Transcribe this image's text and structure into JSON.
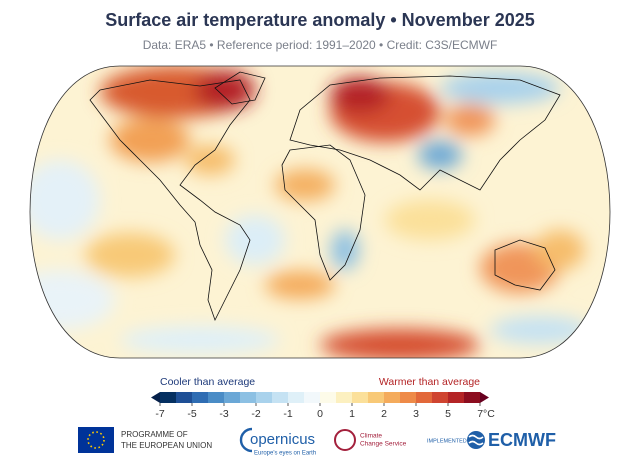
{
  "title": "Surface air temperature anomaly • November 2025",
  "subtitle": "Data: ERA5 • Reference period: 1991–2020 • Credit: C3S/ECMWF",
  "legend": {
    "cooler_label": "Cooler than average",
    "warmer_label": "Warmer than average",
    "boundaries": [
      -7,
      -6,
      -5,
      -4,
      -3,
      -2.5,
      -2,
      -1.5,
      -1,
      -0.5,
      0,
      0.5,
      1,
      1.5,
      2,
      2.5,
      3,
      4,
      5,
      6,
      7
    ],
    "colors": [
      "#053061",
      "#1e4f96",
      "#2f6db3",
      "#4a8cc6",
      "#6aa7d6",
      "#8cc0e3",
      "#a9d2ec",
      "#c5e2f3",
      "#dff0f8",
      "#f2f8fb",
      "#fdfbe9",
      "#fcf0c0",
      "#fbe09a",
      "#f8c977",
      "#f4ab5c",
      "#ee8a48",
      "#e2683a",
      "#cf4430",
      "#b42426",
      "#8c0d1f"
    ],
    "under_color": "#05204a",
    "over_color": "#67001f",
    "ticks": [
      -7,
      -5,
      -3,
      -2,
      -1,
      0,
      1,
      2,
      3,
      5,
      {
        "value": 7,
        "label": "7°C"
      }
    ]
  },
  "logos": {
    "eu_line1": "PROGRAMME OF",
    "eu_line2": "THE EUROPEAN UNION",
    "copernicus": "opernicus",
    "copernicus_tagline": "Europe's eyes on Earth",
    "c3s_line1": "Climate",
    "c3s_line2": "Change Service",
    "implemented_by": "IMPLEMENTED BY",
    "ecmwf": "ECMWF"
  }
}
